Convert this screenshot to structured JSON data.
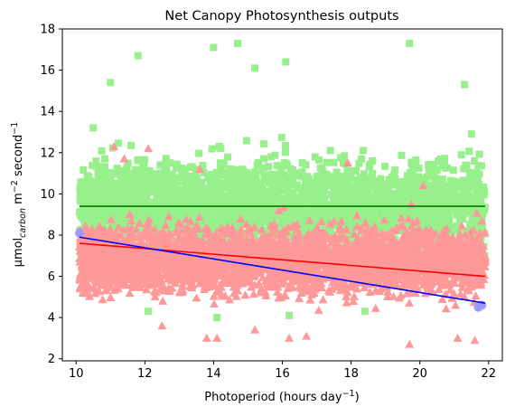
{
  "chart_data": {
    "type": "scatter",
    "title": "Net Canopy Photosynthesis outputs",
    "xlabel": {
      "pre": "Photoperiod (hours day",
      "sup": "−1",
      "post": ")"
    },
    "ylabel": {
      "unit": "μmol",
      "sub": "carbon",
      "mid": " m",
      "sup1": "−2",
      "mid2": " second",
      "sup2": "−1"
    },
    "xlim": [
      9.6,
      22.4
    ],
    "ylim": [
      1.9,
      18
    ],
    "x_ticks": [
      10,
      12,
      14,
      16,
      18,
      20,
      22
    ],
    "y_ticks": [
      2,
      4,
      6,
      8,
      10,
      12,
      14,
      16,
      18
    ],
    "grid": false,
    "series": [
      {
        "marker": "square",
        "color": "#98f08c",
        "x_range": [
          10.1,
          21.9
        ],
        "center_y": 9.4,
        "spread_y": [
          4.2,
          17.3
        ],
        "sample_points": [
          [
            11.0,
            15.4
          ],
          [
            11.8,
            16.7
          ],
          [
            14.0,
            17.1
          ],
          [
            14.7,
            17.3
          ],
          [
            19.7,
            17.3
          ],
          [
            15.2,
            16.1
          ],
          [
            16.1,
            16.4
          ],
          [
            21.3,
            15.3
          ],
          [
            10.5,
            13.2
          ],
          [
            21.5,
            12.9
          ],
          [
            12.1,
            4.3
          ],
          [
            14.1,
            4.0
          ],
          [
            16.2,
            4.1
          ],
          [
            18.4,
            4.3
          ],
          [
            10.2,
            9.3
          ],
          [
            21.8,
            9.4
          ]
        ]
      },
      {
        "marker": "triangle",
        "color": "#ff9999",
        "x_range": [
          10.1,
          21.9
        ],
        "center_y": 6.8,
        "spread_y": [
          2.6,
          12.3
        ],
        "sample_points": [
          [
            11.1,
            12.3
          ],
          [
            12.1,
            12.2
          ],
          [
            12.5,
            3.6
          ],
          [
            13.8,
            3.0
          ],
          [
            14.1,
            3.0
          ],
          [
            15.2,
            3.4
          ],
          [
            16.2,
            3.0
          ],
          [
            16.7,
            3.1
          ],
          [
            19.7,
            2.7
          ],
          [
            21.1,
            3.0
          ],
          [
            21.6,
            2.9
          ],
          [
            10.2,
            5.6
          ],
          [
            11.4,
            11.7
          ],
          [
            13.6,
            11.2
          ],
          [
            20.1,
            10.4
          ],
          [
            21.5,
            7.9
          ],
          [
            21.9,
            6.8
          ],
          [
            17.9,
            11.5
          ]
        ]
      },
      {
        "marker": "circle",
        "color": "#9999ff",
        "sample_points": [
          [
            10.1,
            8.1
          ],
          [
            21.8,
            4.6
          ],
          [
            21.7,
            4.5
          ]
        ]
      }
    ],
    "lines": [
      {
        "color": "#008000",
        "x": [
          10.1,
          21.9
        ],
        "y": [
          9.4,
          9.4
        ]
      },
      {
        "color": "#ff0000",
        "x": [
          10.1,
          21.9
        ],
        "y": [
          7.6,
          6.0
        ]
      },
      {
        "color": "#0000ff",
        "x": [
          10.1,
          21.9
        ],
        "y": [
          7.9,
          4.7
        ]
      }
    ]
  }
}
